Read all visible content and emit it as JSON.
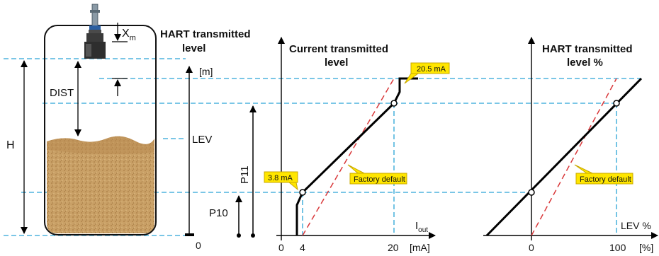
{
  "tank": {
    "xm_label": "X",
    "xm_sub": "m",
    "dist_label": "DIST",
    "h_label": "H",
    "sand_color": "#c9a066"
  },
  "hart_level": {
    "title_line1": "HART transmitted",
    "title_line2": "level",
    "unit_label": "[m]",
    "lev_label": "LEV",
    "zero_label": "0",
    "p10_label": "P10",
    "p11_label": "P11"
  },
  "current_chart": {
    "title_line1": "Current transmitted",
    "title_line2": "level",
    "x_axis_label_main": "I",
    "x_axis_label_sub": "out",
    "ticks": [
      "0",
      "4",
      "20",
      "[mA]"
    ],
    "callout_high": "20.5 mA",
    "callout_low": "3.8 mA",
    "callout_factory": "Factory default"
  },
  "percent_chart": {
    "title_line1": "HART transmitted",
    "title_line2": "level %",
    "x_axis_label": "LEV %",
    "ticks": [
      "0",
      "100",
      "[%]"
    ],
    "callout_factory": "Factory default"
  },
  "colors": {
    "guide": "#2aa3d6",
    "factory_default": "#d9383a",
    "callout_fill": "#ffe600",
    "callout_stroke": "#c8a800",
    "line": "#000000"
  }
}
